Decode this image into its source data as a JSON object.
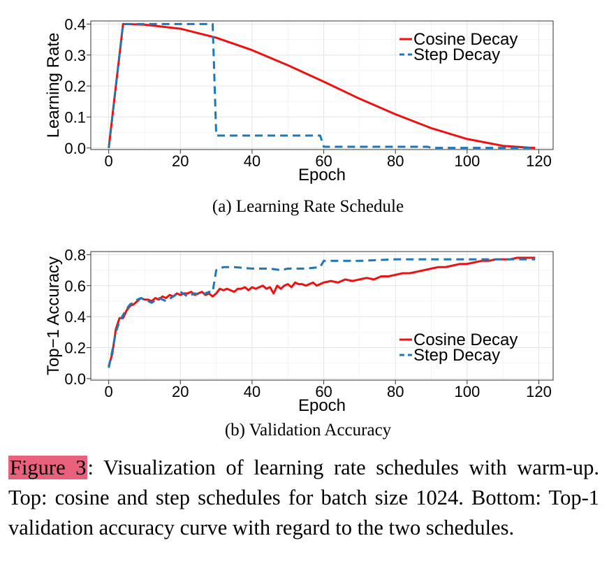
{
  "charts": [
    {
      "subcaption": "(a) Learning Rate Schedule",
      "chart_data": {
        "type": "line",
        "xlabel": "Epoch",
        "ylabel": "Learning Rate",
        "xlim": [
          -5,
          124
        ],
        "ylim": [
          -0.005,
          0.41
        ],
        "xticks": [
          0,
          20,
          40,
          60,
          80,
          100,
          120
        ],
        "yticks": [
          0.0,
          0.1,
          0.2,
          0.3,
          0.4
        ],
        "ytick_labels": [
          "0.0",
          "0.1",
          "0.2",
          "0.3",
          "0.4"
        ],
        "grid": true,
        "legend_position": "top-right",
        "series": [
          {
            "name": "Cosine Decay",
            "color": "#ee1111",
            "dash": "solid",
            "x": [
              0,
              1,
              2,
              3,
              4,
              10,
              20,
              30,
              40,
              50,
              60,
              70,
              80,
              90,
              100,
              110,
              119
            ],
            "y": [
              0.0,
              0.1,
              0.2,
              0.3,
              0.4,
              0.398,
              0.385,
              0.356,
              0.316,
              0.267,
              0.214,
              0.159,
              0.109,
              0.064,
              0.029,
              0.007,
              0.0
            ]
          },
          {
            "name": "Step Decay",
            "color": "#1f78b4",
            "dash": "dashed",
            "x": [
              0,
              4,
              29,
              30,
              59,
              60,
              89,
              90,
              119
            ],
            "y": [
              0.0,
              0.4,
              0.4,
              0.04,
              0.04,
              0.004,
              0.004,
              0.0004,
              0.0004
            ]
          }
        ]
      }
    },
    {
      "subcaption": "(b) Validation Accuracy",
      "chart_data": {
        "type": "line",
        "xlabel": "Epoch",
        "ylabel": "Top−1 Accuracy",
        "xlim": [
          -5,
          124
        ],
        "ylim": [
          -0.01,
          0.82
        ],
        "xticks": [
          0,
          20,
          40,
          60,
          80,
          100,
          120
        ],
        "yticks": [
          0.0,
          0.2,
          0.4,
          0.6,
          0.8
        ],
        "ytick_labels": [
          "0.0",
          "0.2",
          "0.4",
          "0.6",
          "0.8"
        ],
        "grid": true,
        "legend_position": "bottom-right",
        "series": [
          {
            "name": "Cosine Decay",
            "color": "#ee1111",
            "dash": "solid",
            "x": [
              0,
              1,
              2,
              3,
              4,
              5,
              6,
              7,
              8,
              9,
              10,
              11,
              12,
              13,
              14,
              15,
              16,
              17,
              18,
              19,
              20,
              21,
              22,
              23,
              24,
              25,
              26,
              27,
              28,
              29,
              30,
              31,
              32,
              33,
              34,
              35,
              36,
              37,
              38,
              39,
              40,
              41,
              42,
              43,
              44,
              45,
              46,
              47,
              48,
              49,
              50,
              51,
              52,
              53,
              54,
              55,
              56,
              57,
              58,
              59,
              60,
              62,
              64,
              66,
              68,
              70,
              72,
              74,
              76,
              78,
              80,
              82,
              84,
              86,
              88,
              90,
              92,
              94,
              96,
              98,
              100,
              102,
              104,
              106,
              108,
              110,
              112,
              114,
              116,
              118,
              119
            ],
            "y": [
              0.08,
              0.16,
              0.32,
              0.39,
              0.39,
              0.44,
              0.47,
              0.48,
              0.5,
              0.52,
              0.51,
              0.51,
              0.5,
              0.52,
              0.51,
              0.53,
              0.52,
              0.54,
              0.53,
              0.55,
              0.54,
              0.55,
              0.55,
              0.56,
              0.54,
              0.55,
              0.56,
              0.54,
              0.55,
              0.53,
              0.55,
              0.58,
              0.57,
              0.58,
              0.57,
              0.56,
              0.58,
              0.58,
              0.59,
              0.57,
              0.59,
              0.58,
              0.59,
              0.6,
              0.58,
              0.59,
              0.55,
              0.6,
              0.58,
              0.6,
              0.61,
              0.59,
              0.62,
              0.61,
              0.61,
              0.6,
              0.61,
              0.62,
              0.6,
              0.61,
              0.62,
              0.63,
              0.62,
              0.64,
              0.63,
              0.64,
              0.65,
              0.64,
              0.66,
              0.66,
              0.67,
              0.68,
              0.68,
              0.69,
              0.7,
              0.71,
              0.72,
              0.72,
              0.73,
              0.74,
              0.74,
              0.75,
              0.76,
              0.76,
              0.77,
              0.77,
              0.77,
              0.78,
              0.78,
              0.78,
              0.78
            ]
          },
          {
            "name": "Step Decay",
            "color": "#1f78b4",
            "dash": "dashed",
            "x": [
              0,
              1,
              2,
              3,
              4,
              5,
              6,
              7,
              8,
              9,
              10,
              12,
              14,
              16,
              18,
              20,
              22,
              24,
              26,
              28,
              29,
              30,
              32,
              35,
              40,
              45,
              48,
              50,
              55,
              59,
              60,
              65,
              70,
              80,
              90,
              100,
              110,
              119
            ],
            "y": [
              0.07,
              0.18,
              0.3,
              0.37,
              0.41,
              0.45,
              0.48,
              0.49,
              0.51,
              0.52,
              0.51,
              0.49,
              0.52,
              0.5,
              0.53,
              0.56,
              0.53,
              0.55,
              0.54,
              0.56,
              0.56,
              0.7,
              0.72,
              0.72,
              0.71,
              0.71,
              0.7,
              0.71,
              0.71,
              0.72,
              0.76,
              0.76,
              0.76,
              0.77,
              0.77,
              0.77,
              0.77,
              0.77
            ]
          }
        ]
      }
    }
  ],
  "caption": {
    "label": "Figure 3",
    "text": ":  Visualization of learning rate schedules with warm-up.  Top: cosine and step schedules for batch size 1024. Bottom: Top-1 validation accuracy curve with regard to the two schedules."
  }
}
